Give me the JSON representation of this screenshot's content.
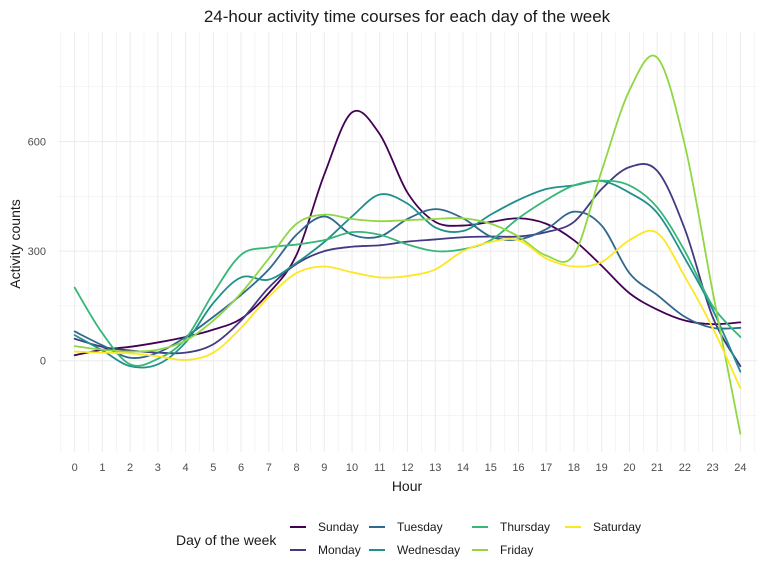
{
  "chart_data": {
    "type": "line",
    "title": "24-hour activity time courses for each day of the week",
    "xlabel": "Hour",
    "ylabel": "Activity counts",
    "xlim": [
      -0.6,
      24.6
    ],
    "ylim": [
      -250,
      900
    ],
    "x_ticks": [
      0,
      1,
      2,
      3,
      4,
      5,
      6,
      7,
      8,
      9,
      10,
      11,
      12,
      13,
      14,
      15,
      16,
      17,
      18,
      19,
      20,
      21,
      22,
      23,
      24
    ],
    "y_ticks": [
      0,
      300,
      600
    ],
    "grid": true,
    "legend_title": "Day of the week",
    "legend_position": "bottom",
    "x": [
      0,
      1,
      2,
      3,
      4,
      5,
      6,
      7,
      8,
      9,
      10,
      11,
      12,
      13,
      14,
      15,
      16,
      17,
      18,
      19,
      20,
      21,
      22,
      23,
      24
    ],
    "series": [
      {
        "name": "Sunday",
        "color": "#440154",
        "values": [
          15,
          30,
          38,
          50,
          65,
          85,
          115,
          185,
          290,
          510,
          680,
          620,
          460,
          380,
          370,
          380,
          390,
          375,
          330,
          260,
          185,
          140,
          110,
          100,
          105
        ]
      },
      {
        "name": "Monday",
        "color": "#443a83",
        "values": [
          60,
          38,
          28,
          22,
          22,
          45,
          110,
          200,
          265,
          300,
          312,
          316,
          326,
          332,
          338,
          340,
          340,
          352,
          380,
          470,
          530,
          520,
          360,
          120,
          -15
        ]
      },
      {
        "name": "Tuesday",
        "color": "#31688e",
        "values": [
          80,
          42,
          8,
          22,
          65,
          120,
          180,
          250,
          345,
          395,
          345,
          340,
          388,
          415,
          390,
          340,
          332,
          360,
          408,
          370,
          240,
          180,
          120,
          90,
          90
        ]
      },
      {
        "name": "Wednesday",
        "color": "#21908d",
        "values": [
          70,
          28,
          -15,
          -10,
          50,
          158,
          228,
          222,
          268,
          325,
          395,
          455,
          430,
          365,
          355,
          400,
          440,
          470,
          480,
          492,
          460,
          405,
          280,
          140,
          -30
        ]
      },
      {
        "name": "Thursday",
        "color": "#35b779",
        "values": [
          200,
          75,
          -10,
          5,
          60,
          185,
          290,
          310,
          318,
          330,
          352,
          345,
          318,
          300,
          305,
          330,
          390,
          440,
          480,
          493,
          480,
          420,
          300,
          150,
          65
        ]
      },
      {
        "name": "Friday",
        "color": "#8fd744",
        "values": [
          40,
          30,
          25,
          30,
          55,
          110,
          185,
          280,
          375,
          400,
          388,
          382,
          385,
          388,
          390,
          375,
          340,
          288,
          290,
          520,
          740,
          830,
          590,
          190,
          -200
        ]
      },
      {
        "name": "Saturday",
        "color": "#fde725",
        "values": [
          25,
          22,
          20,
          12,
          2,
          22,
          90,
          175,
          240,
          258,
          242,
          228,
          232,
          250,
          300,
          325,
          330,
          280,
          258,
          270,
          330,
          350,
          230,
          90,
          -75
        ]
      }
    ]
  }
}
